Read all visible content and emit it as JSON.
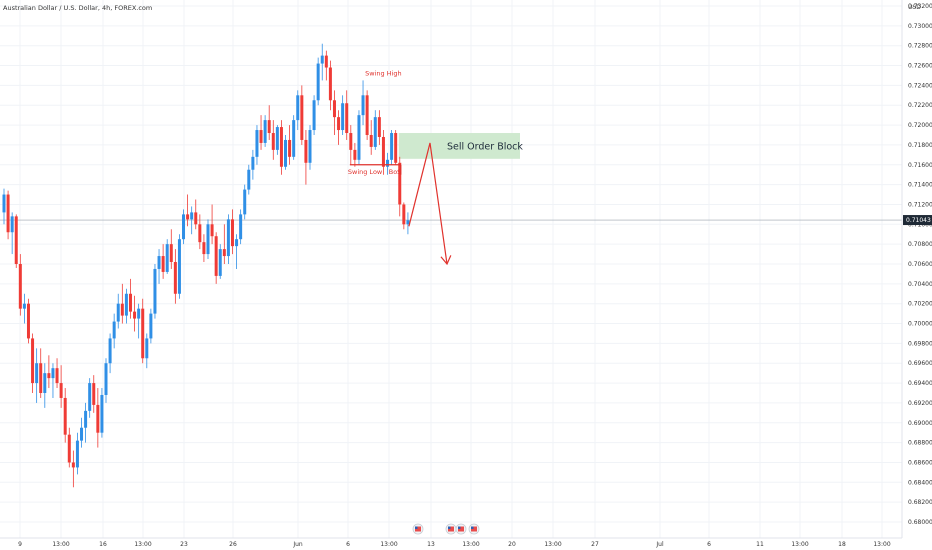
{
  "header": {
    "title": "Australian Dollar / U.S. Dollar, 4h, FOREX.com",
    "currency": "USD"
  },
  "colors": {
    "bull": "#2f8fe6",
    "bear": "#ef3b36",
    "annotation": "#e0322d",
    "order_block": "#cfe9cf",
    "grid": "#f0f3f7",
    "price_line": "#9aa3ad",
    "badge": "#1f2a36"
  },
  "chart_data": {
    "type": "candlestick",
    "y_ticks": [
      "0.73200",
      "0.73000",
      "0.72800",
      "0.72600",
      "0.72400",
      "0.72200",
      "0.72000",
      "0.71800",
      "0.71600",
      "0.71400",
      "0.71200",
      "0.71000",
      "0.70800",
      "0.70600",
      "0.70400",
      "0.70200",
      "0.70000",
      "0.69800",
      "0.69600",
      "0.69400",
      "0.69200",
      "0.69000",
      "0.68800",
      "0.68600",
      "0.68400",
      "0.68200",
      "0.68000"
    ],
    "ylim": [
      0.6795,
      0.7325
    ],
    "x_ticks": [
      "9",
      "13:00",
      "16",
      "13:00",
      "23",
      "26",
      "Jun",
      "6",
      "13:00",
      "13",
      "13:00",
      "20",
      "13:00",
      "27",
      "Jul",
      "6",
      "11",
      "13:00",
      "18",
      "13:00"
    ],
    "last_price": "0.71043",
    "ohlc": [
      [
        0.7112,
        0.7136,
        0.71,
        0.713
      ],
      [
        0.713,
        0.7134,
        0.7085,
        0.7092
      ],
      [
        0.7092,
        0.7112,
        0.707,
        0.7108
      ],
      [
        0.7108,
        0.711,
        0.7056,
        0.706
      ],
      [
        0.706,
        0.707,
        0.7008,
        0.7015
      ],
      [
        0.7015,
        0.703,
        0.7,
        0.702
      ],
      [
        0.702,
        0.7025,
        0.698,
        0.6985
      ],
      [
        0.6985,
        0.699,
        0.693,
        0.694
      ],
      [
        0.694,
        0.6975,
        0.692,
        0.696
      ],
      [
        0.696,
        0.6975,
        0.6925,
        0.693
      ],
      [
        0.693,
        0.696,
        0.6915,
        0.695
      ],
      [
        0.695,
        0.6968,
        0.6935,
        0.6945
      ],
      [
        0.6945,
        0.696,
        0.6925,
        0.6955
      ],
      [
        0.6955,
        0.6965,
        0.6935,
        0.694
      ],
      [
        0.694,
        0.6958,
        0.6915,
        0.6925
      ],
      [
        0.6925,
        0.6935,
        0.688,
        0.6888
      ],
      [
        0.6888,
        0.6895,
        0.6855,
        0.686
      ],
      [
        0.686,
        0.6872,
        0.6835,
        0.6855
      ],
      [
        0.6855,
        0.689,
        0.6848,
        0.6882
      ],
      [
        0.6882,
        0.6905,
        0.6875,
        0.6895
      ],
      [
        0.6895,
        0.692,
        0.688,
        0.6912
      ],
      [
        0.6912,
        0.6945,
        0.6905,
        0.694
      ],
      [
        0.694,
        0.6948,
        0.691,
        0.6918
      ],
      [
        0.6918,
        0.6935,
        0.6875,
        0.689
      ],
      [
        0.689,
        0.6935,
        0.6885,
        0.6928
      ],
      [
        0.6928,
        0.6965,
        0.692,
        0.696
      ],
      [
        0.696,
        0.699,
        0.695,
        0.6985
      ],
      [
        0.6985,
        0.701,
        0.6975,
        0.7002
      ],
      [
        0.7002,
        0.703,
        0.6995,
        0.702
      ],
      [
        0.702,
        0.704,
        0.7,
        0.7008
      ],
      [
        0.7008,
        0.7035,
        0.7,
        0.703
      ],
      [
        0.703,
        0.7045,
        0.7005,
        0.7012
      ],
      [
        0.7012,
        0.7028,
        0.6992,
        0.7005
      ],
      [
        0.7005,
        0.702,
        0.6985,
        0.7015
      ],
      [
        0.7015,
        0.7025,
        0.696,
        0.6965
      ],
      [
        0.6965,
        0.699,
        0.6955,
        0.6985
      ],
      [
        0.6985,
        0.7015,
        0.698,
        0.701
      ],
      [
        0.701,
        0.706,
        0.7005,
        0.7055
      ],
      [
        0.7055,
        0.7075,
        0.704,
        0.7068
      ],
      [
        0.7068,
        0.708,
        0.7045,
        0.7052
      ],
      [
        0.7052,
        0.7085,
        0.705,
        0.708
      ],
      [
        0.708,
        0.7095,
        0.7055,
        0.7062
      ],
      [
        0.7062,
        0.7075,
        0.702,
        0.703
      ],
      [
        0.703,
        0.709,
        0.7025,
        0.7085
      ],
      [
        0.7085,
        0.7115,
        0.708,
        0.711
      ],
      [
        0.711,
        0.713,
        0.7098,
        0.7105
      ],
      [
        0.7105,
        0.7118,
        0.709,
        0.7112
      ],
      [
        0.7112,
        0.7125,
        0.7095,
        0.71
      ],
      [
        0.71,
        0.711,
        0.7075,
        0.7082
      ],
      [
        0.7082,
        0.709,
        0.7062,
        0.707
      ],
      [
        0.707,
        0.7105,
        0.7065,
        0.71
      ],
      [
        0.71,
        0.712,
        0.708,
        0.7088
      ],
      [
        0.7088,
        0.7092,
        0.704,
        0.7048
      ],
      [
        0.7048,
        0.708,
        0.7045,
        0.7075
      ],
      [
        0.7075,
        0.71,
        0.706,
        0.7068
      ],
      [
        0.7068,
        0.711,
        0.706,
        0.7105
      ],
      [
        0.7105,
        0.7115,
        0.707,
        0.7078
      ],
      [
        0.7078,
        0.709,
        0.7055,
        0.7085
      ],
      [
        0.7085,
        0.7115,
        0.708,
        0.711
      ],
      [
        0.711,
        0.714,
        0.7105,
        0.7135
      ],
      [
        0.7135,
        0.716,
        0.713,
        0.7155
      ],
      [
        0.7155,
        0.7175,
        0.7145,
        0.7168
      ],
      [
        0.7168,
        0.72,
        0.716,
        0.7195
      ],
      [
        0.7195,
        0.721,
        0.7175,
        0.7182
      ],
      [
        0.7182,
        0.721,
        0.7178,
        0.7205
      ],
      [
        0.7205,
        0.722,
        0.7185,
        0.7192
      ],
      [
        0.7192,
        0.7205,
        0.7165,
        0.7175
      ],
      [
        0.7175,
        0.72,
        0.717,
        0.7198
      ],
      [
        0.7198,
        0.7205,
        0.715,
        0.7158
      ],
      [
        0.7158,
        0.719,
        0.7155,
        0.7185
      ],
      [
        0.7185,
        0.72,
        0.716,
        0.7168
      ],
      [
        0.7168,
        0.721,
        0.7165,
        0.7205
      ],
      [
        0.7205,
        0.7235,
        0.7195,
        0.723
      ],
      [
        0.723,
        0.724,
        0.718,
        0.7185
      ],
      [
        0.7185,
        0.7195,
        0.714,
        0.7162
      ],
      [
        0.7162,
        0.72,
        0.7155,
        0.7195
      ],
      [
        0.7195,
        0.723,
        0.719,
        0.7225
      ],
      [
        0.7225,
        0.7268,
        0.722,
        0.7262
      ],
      [
        0.7262,
        0.7282,
        0.7245,
        0.727
      ],
      [
        0.727,
        0.7275,
        0.7245,
        0.7258
      ],
      [
        0.7258,
        0.7265,
        0.7215,
        0.7225
      ],
      [
        0.7225,
        0.7235,
        0.719,
        0.7208
      ],
      [
        0.7208,
        0.7215,
        0.718,
        0.7195
      ],
      [
        0.7195,
        0.723,
        0.719,
        0.7222
      ],
      [
        0.7222,
        0.7235,
        0.7185,
        0.7192
      ],
      [
        0.7192,
        0.72,
        0.716,
        0.7175
      ],
      [
        0.7175,
        0.7182,
        0.7158,
        0.7165
      ],
      [
        0.7165,
        0.7215,
        0.716,
        0.721
      ],
      [
        0.721,
        0.7245,
        0.72,
        0.723
      ],
      [
        0.723,
        0.7235,
        0.7185,
        0.719
      ],
      [
        0.719,
        0.7205,
        0.717,
        0.7178
      ],
      [
        0.7178,
        0.7215,
        0.7175,
        0.7208
      ],
      [
        0.7208,
        0.7215,
        0.718,
        0.7188
      ],
      [
        0.7188,
        0.7195,
        0.715,
        0.7158
      ],
      [
        0.7158,
        0.7172,
        0.715,
        0.7165
      ],
      [
        0.7165,
        0.7195,
        0.716,
        0.7192
      ],
      [
        0.7192,
        0.7195,
        0.716,
        0.7162
      ],
      [
        0.7162,
        0.7168,
        0.7108,
        0.712
      ],
      [
        0.712,
        0.7122,
        0.7095,
        0.71
      ],
      [
        0.71,
        0.7112,
        0.709,
        0.7104
      ]
    ]
  },
  "annotations": {
    "swing_high": "Swing High",
    "swing_low": "Swing Low",
    "bos": "BoS",
    "order_block": "Sell Order Block"
  },
  "icons": [
    "event-flag-icon",
    "event-flag-icon",
    "event-flag-icon",
    "event-flag-icon"
  ]
}
